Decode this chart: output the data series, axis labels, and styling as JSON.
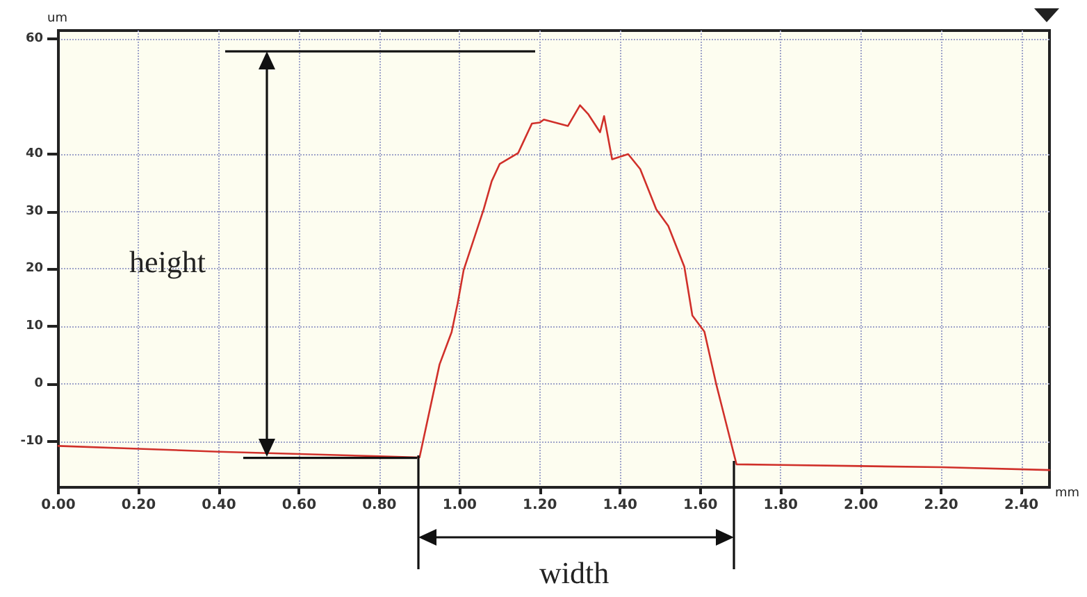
{
  "chart_data": {
    "type": "line",
    "xlabel": "mm",
    "ylabel": "um",
    "annotations": [
      "height",
      "width"
    ],
    "x": [
      0,
      0.2,
      0.4,
      0.6,
      0.8,
      0.9,
      0.95,
      0.98,
      0.995,
      1.01,
      1.06,
      1.08,
      1.1,
      1.146,
      1.16,
      1.18,
      1.2,
      1.21,
      1.27,
      1.3,
      1.32,
      1.35,
      1.36,
      1.38,
      1.42,
      1.45,
      1.49,
      1.52,
      1.56,
      1.58,
      1.61,
      1.64,
      1.66,
      1.69,
      1.8,
      2.0,
      2.2,
      2.47
    ],
    "series": [
      {
        "color": "#d0302a",
        "values": [
          -10.8,
          -11.3,
          -11.8,
          -12.2,
          -12.6,
          -12.8,
          3.4,
          9,
          14,
          19.8,
          30.4,
          35.3,
          38.3,
          40.2,
          42.3,
          45.3,
          45.5,
          46,
          44.9,
          48.5,
          47,
          43.8,
          46.6,
          39.1,
          40,
          37.4,
          30.4,
          27.5,
          20.4,
          11.9,
          9.1,
          -0.2,
          -5.7,
          -14,
          -14.1,
          -14.3,
          -14.5,
          -15
        ]
      }
    ],
    "xlim": [
      0,
      2.47
    ],
    "ylim": [
      -18,
      61.5
    ],
    "xticks": [
      {
        "value": 0,
        "label": "0.00"
      },
      {
        "value": 0.2,
        "label": "0.20"
      },
      {
        "value": 0.4,
        "label": "0.40"
      },
      {
        "value": 0.6,
        "label": "0.60"
      },
      {
        "value": 0.8,
        "label": "0.80"
      },
      {
        "value": 1,
        "label": "1.00"
      },
      {
        "value": 1.2,
        "label": "1.20"
      },
      {
        "value": 1.4,
        "label": "1.40"
      },
      {
        "value": 1.6,
        "label": "1.60"
      },
      {
        "value": 1.8,
        "label": "1.80"
      },
      {
        "value": 2,
        "label": "2.00"
      },
      {
        "value": 2.2,
        "label": "2.20"
      },
      {
        "value": 2.4,
        "label": "2.40"
      }
    ],
    "yticks": [
      -10,
      0,
      10,
      20,
      30,
      40,
      60
    ],
    "grid": true,
    "marker": "none",
    "line_style": "solid"
  }
}
